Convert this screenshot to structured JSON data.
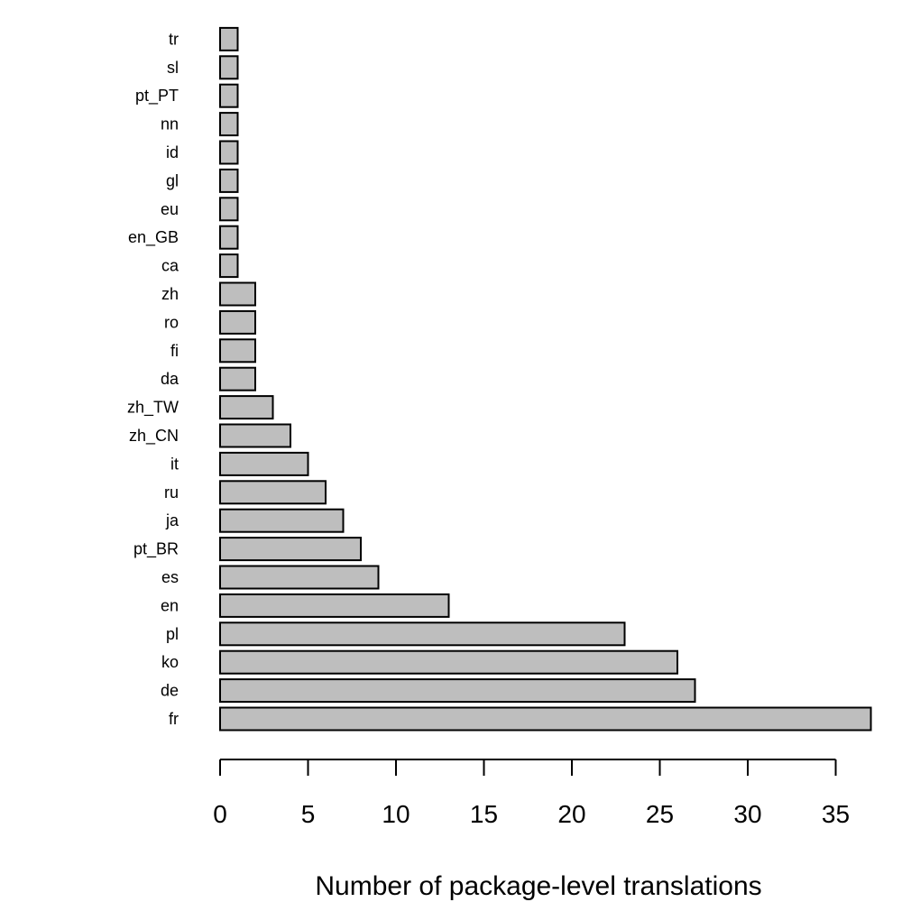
{
  "chart_data": {
    "type": "bar",
    "orientation": "horizontal",
    "categories": [
      "fr",
      "de",
      "ko",
      "pl",
      "en",
      "es",
      "pt_BR",
      "ja",
      "ru",
      "it",
      "zh_CN",
      "zh_TW",
      "da",
      "fi",
      "ro",
      "zh",
      "ca",
      "en_GB",
      "eu",
      "gl",
      "id",
      "nn",
      "pt_PT",
      "sl",
      "tr"
    ],
    "values": [
      37,
      27,
      26,
      23,
      13,
      9,
      8,
      7,
      6,
      5,
      4,
      3,
      2,
      2,
      2,
      2,
      1,
      1,
      1,
      1,
      1,
      1,
      1,
      1,
      1
    ],
    "xlabel": "Number of package-level translations",
    "ylabel": "",
    "title": "",
    "xlim": [
      0,
      35
    ],
    "xticks": [
      0,
      5,
      10,
      15,
      20,
      25,
      30,
      35
    ],
    "xtick_labels": [
      "0",
      "5",
      "10",
      "15",
      "20",
      "25",
      "30",
      "35"
    ],
    "bar_color": "#bebebe",
    "bar_border_color": "#000000",
    "grid": false,
    "legend": "none"
  }
}
